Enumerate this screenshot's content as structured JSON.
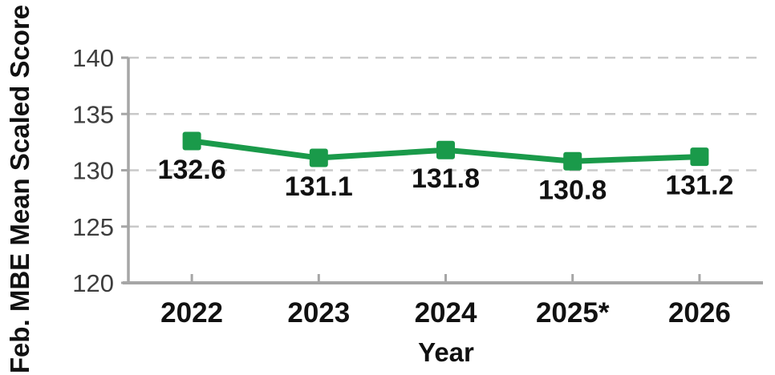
{
  "chart_data": {
    "type": "line",
    "title": "",
    "xlabel": "Year",
    "ylabel": "Feb. MBE Mean Scaled Score",
    "categories": [
      "2022",
      "2023",
      "2024",
      "2025*",
      "2026"
    ],
    "series": [
      {
        "name": "Feb. MBE Mean Scaled Score",
        "values": [
          132.6,
          131.1,
          131.8,
          130.8,
          131.2
        ]
      }
    ],
    "data_labels": [
      "132.6",
      "131.1",
      "131.8",
      "130.8",
      "131.2"
    ],
    "ylim": [
      120,
      140
    ],
    "yticks": [
      120,
      125,
      130,
      135,
      140
    ],
    "ytick_labels": [
      "120",
      "125",
      "130",
      "135",
      "140"
    ],
    "grid": "horizontal-dashed",
    "legend": "none",
    "marker": "square",
    "colors": {
      "line": "#1A9A4A",
      "marker": "#1A9A4A",
      "axis": "#A6A6A6",
      "gridline": "#C9C9C9",
      "data_label": "#111111",
      "x_tick_label": "#111111",
      "y_tick_label": "#3D3D3D",
      "axis_title": "#111111"
    }
  }
}
